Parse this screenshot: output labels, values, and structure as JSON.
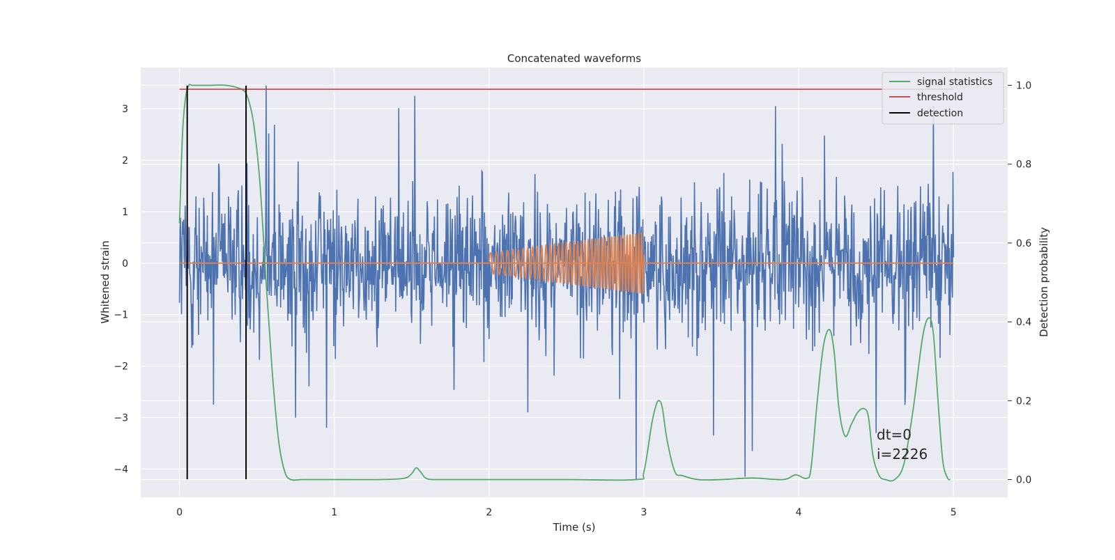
{
  "chart_data": {
    "type": "line",
    "title": "Concatenated waveforms",
    "xlabel": "Time (s)",
    "ylabel": "Whitened strain",
    "y2label": "Detection probability",
    "xlim": [
      -0.25,
      5.35
    ],
    "ylim": [
      -4.55,
      3.8
    ],
    "y2lim": [
      -0.045,
      1.045
    ],
    "x_ticks": [
      "0",
      "1",
      "2",
      "3",
      "4",
      "5"
    ],
    "y_ticks": [
      "−4",
      "−3",
      "−2",
      "−1",
      "0",
      "1",
      "2",
      "3"
    ],
    "y2_ticks": [
      "0.0",
      "0.2",
      "0.4",
      "0.6",
      "0.8",
      "1.0"
    ],
    "grid": true,
    "legend_position": "top-right",
    "colors": {
      "noise": "#4c72b0",
      "injection": "#dd8452",
      "signal_statistics": "#55a868",
      "threshold": "#c44e52",
      "detection": "#000000",
      "background": "#eaeaf2"
    },
    "series": [
      {
        "name": "signal statistics",
        "axis": "right",
        "x": [
          0.0,
          0.02,
          0.04,
          0.06,
          0.08,
          0.1,
          0.2,
          0.3,
          0.4,
          0.44,
          0.48,
          0.52,
          0.56,
          0.6,
          0.64,
          0.68,
          0.72,
          0.8,
          1.0,
          1.3,
          1.45,
          1.5,
          1.53,
          1.56,
          1.6,
          1.7,
          2.0,
          2.5,
          2.95,
          3.0,
          3.05,
          3.08,
          3.1,
          3.12,
          3.15,
          3.2,
          3.25,
          3.35,
          3.5,
          3.7,
          3.9,
          3.98,
          4.05,
          4.08,
          4.12,
          4.16,
          4.2,
          4.23,
          4.26,
          4.3,
          4.34,
          4.38,
          4.42,
          4.45,
          4.48,
          4.52,
          4.56,
          4.62,
          4.68,
          4.74,
          4.8,
          4.84,
          4.87,
          4.9,
          4.93,
          4.96,
          4.98
        ],
        "values": [
          0.65,
          0.88,
          0.97,
          1.0,
          1.0,
          1.0,
          1.0,
          1.0,
          0.99,
          0.97,
          0.9,
          0.75,
          0.5,
          0.27,
          0.1,
          0.02,
          0.0,
          0.0,
          0.0,
          0.0,
          0.003,
          0.015,
          0.03,
          0.018,
          0.002,
          0.0,
          0.0,
          0.0,
          0.0,
          0.02,
          0.14,
          0.19,
          0.2,
          0.18,
          0.1,
          0.02,
          0.01,
          0.0,
          0.0,
          0.004,
          0.0,
          0.012,
          0.003,
          0.03,
          0.2,
          0.34,
          0.38,
          0.32,
          0.18,
          0.11,
          0.14,
          0.17,
          0.18,
          0.16,
          0.06,
          0.01,
          0.0,
          0.0,
          0.04,
          0.18,
          0.36,
          0.41,
          0.37,
          0.2,
          0.05,
          0.005,
          0.0
        ]
      },
      {
        "name": "threshold",
        "axis": "right",
        "x": [
          0.0,
          5.0
        ],
        "values": [
          0.99,
          0.99
        ]
      },
      {
        "name": "detection",
        "axis": "left",
        "x": [
          0.05,
          0.43
        ],
        "y_range": [
          -4.2,
          3.45
        ]
      },
      {
        "name": "",
        "role": "whitened noise",
        "axis": "left",
        "x_range": [
          0.0,
          5.0
        ],
        "sample_count": 2226,
        "core_amplitude": 1.15,
        "peaks": [
          {
            "x": 0.56,
            "y": 3.45
          },
          {
            "x": 2.95,
            "y": -4.2
          },
          {
            "x": 3.7,
            "y": -3.65
          },
          {
            "x": 4.5,
            "y": -3.3
          },
          {
            "x": 4.87,
            "y": 3.05
          },
          {
            "x": 3.85,
            "y": 3.05
          },
          {
            "x": 1.52,
            "y": 3.25
          },
          {
            "x": 0.95,
            "y": -3.2
          },
          {
            "x": 0.75,
            "y": -3.0
          },
          {
            "x": 0.22,
            "y": -2.75
          },
          {
            "x": 3.45,
            "y": -3.35
          },
          {
            "x": 2.25,
            "y": -2.9
          }
        ]
      },
      {
        "name": "",
        "role": "injected chirp",
        "axis": "left",
        "x_range": [
          2.0,
          3.0
        ],
        "amplitude_start": 0.2,
        "amplitude_end": 0.6,
        "freq_start_hz": 25,
        "freq_end_hz": 55
      }
    ],
    "annotations": [
      "dt=0",
      "i=2226"
    ]
  },
  "legend": {
    "items": [
      {
        "label": "signal statistics",
        "color": "#55a868"
      },
      {
        "label": "threshold",
        "color": "#c44e52"
      },
      {
        "label": "detection",
        "color": "#000000"
      }
    ]
  }
}
